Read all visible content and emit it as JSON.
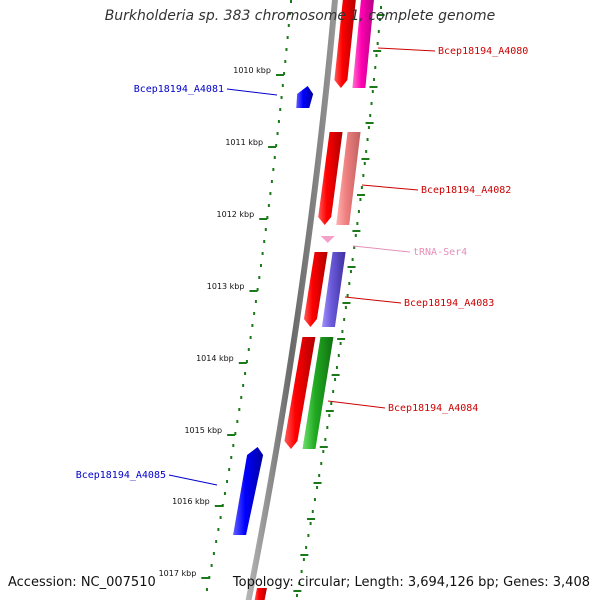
{
  "title": "Burkholderia sp. 383 chromosome 1, complete genome",
  "footer": {
    "accession": "Accession: NC_007510",
    "topology": "Topology: circular; Length: 3,694,126 bp; Genes: 3,408"
  },
  "colors": {
    "backbone": "#8a8a8a",
    "dots": "#1a7a1a",
    "forward_label": "#cc0000",
    "reverse_label": "#0000cc",
    "trna_label": "#e58fb8"
  },
  "ticks": [
    "1010 kbp",
    "1011 kbp",
    "1012 kbp",
    "1013 kbp",
    "1014 kbp",
    "1015 kbp",
    "1016 kbp",
    "1017 kbp"
  ],
  "genes": [
    {
      "label": "Bcep18194_A4080",
      "strand": "forward",
      "color": "#e8000e",
      "partner": "#ee00aa"
    },
    {
      "label": "Bcep18194_A4081",
      "strand": "reverse",
      "color": "#0000ff"
    },
    {
      "label": "Bcep18194_A4082",
      "strand": "forward",
      "color": "#e8000e",
      "partner": "#f08080"
    },
    {
      "label": "tRNA-Ser4",
      "strand": "forward",
      "color": "#f4a0c8"
    },
    {
      "label": "Bcep18194_A4083",
      "strand": "forward",
      "color": "#e8000e",
      "partner": "#7060d8"
    },
    {
      "label": "Bcep18194_A4084",
      "strand": "forward",
      "color": "#e8000e",
      "partner": "#22aa22"
    },
    {
      "label": "Bcep18194_A4085",
      "strand": "reverse",
      "color": "#0000ff"
    }
  ]
}
